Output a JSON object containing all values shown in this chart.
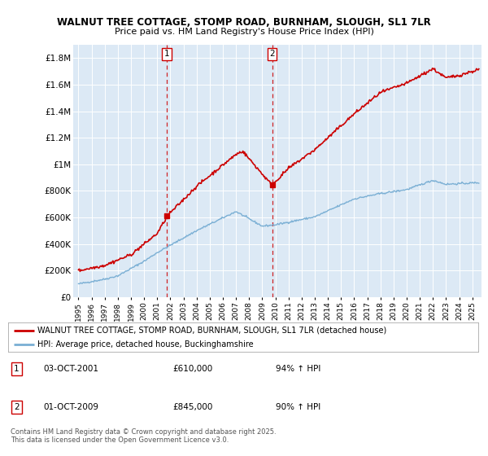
{
  "title1": "WALNUT TREE COTTAGE, STOMP ROAD, BURNHAM, SLOUGH, SL1 7LR",
  "title2": "Price paid vs. HM Land Registry's House Price Index (HPI)",
  "background_color": "#dce9f5",
  "red_line_color": "#cc0000",
  "blue_line_color": "#7aafd4",
  "vline_color": "#cc0000",
  "sale1_x": 2001.75,
  "sale2_x": 2009.75,
  "sale1_y": 610000,
  "sale2_y": 845000,
  "legend_red": "WALNUT TREE COTTAGE, STOMP ROAD, BURNHAM, SLOUGH, SL1 7LR (detached house)",
  "legend_blue": "HPI: Average price, detached house, Buckinghamshire",
  "sale1_date": "03-OCT-2001",
  "sale1_price": "£610,000",
  "sale1_hpi": "94% ↑ HPI",
  "sale2_date": "01-OCT-2009",
  "sale2_price": "£845,000",
  "sale2_hpi": "90% ↑ HPI",
  "footnote": "Contains HM Land Registry data © Crown copyright and database right 2025.\nThis data is licensed under the Open Government Licence v3.0.",
  "ylim": [
    0,
    1900000
  ],
  "yticks": [
    0,
    200000,
    400000,
    600000,
    800000,
    1000000,
    1200000,
    1400000,
    1600000,
    1800000
  ],
  "xlim_start": 1994.6,
  "xlim_end": 2025.7
}
